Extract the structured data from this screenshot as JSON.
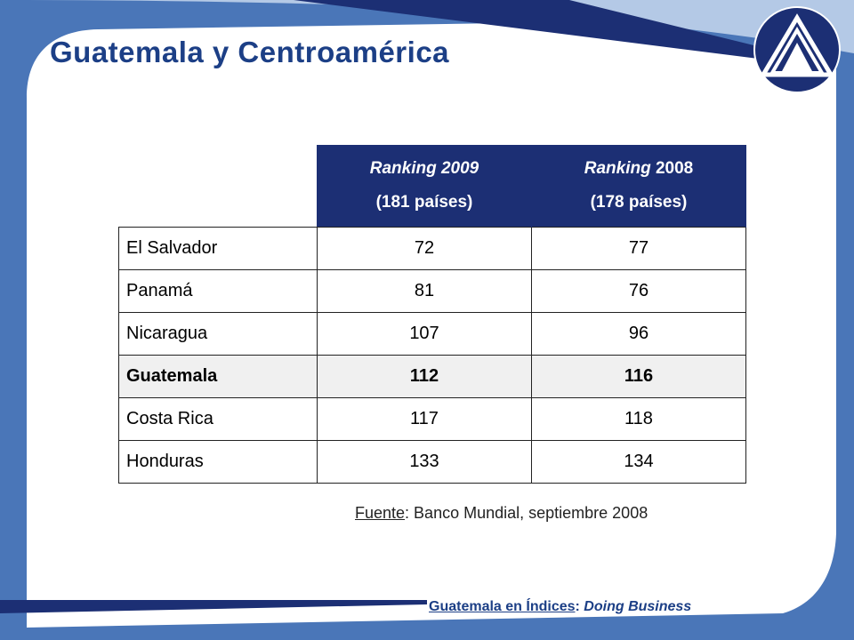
{
  "slide": {
    "title": "Guatemala y Centroamérica"
  },
  "table": {
    "headers": [
      {
        "line1_italic": "Ranking 2009",
        "line1_rest": "",
        "line2": "(181 países)"
      },
      {
        "line1_italic": "Ranking",
        "line1_rest": " 2008",
        "line2": "(178 países)"
      }
    ],
    "rows": [
      {
        "country": "El Salvador",
        "r2009": "72",
        "r2008": "77"
      },
      {
        "country": "Panamá",
        "r2009": "81",
        "r2008": "76"
      },
      {
        "country": "Nicaragua",
        "r2009": "107",
        "r2008": "96"
      },
      {
        "country": "Guatemala",
        "r2009": "112",
        "r2008": "116"
      },
      {
        "country": "Costa Rica",
        "r2009": "117",
        "r2008": "118"
      },
      {
        "country": "Honduras",
        "r2009": "133",
        "r2008": "134"
      }
    ]
  },
  "source": {
    "label": "Fuente",
    "text": ": Banco Mundial, septiembre 2008"
  },
  "footer": {
    "link": "Guatemala en Índices",
    "sep": ": ",
    "topic": "Doing Business"
  },
  "colors": {
    "brand_dark": "#1c2f74",
    "brand_mid": "#4a76b8",
    "brand_light": "#b4c9e6",
    "highlight_row": "#f0f0f0"
  },
  "icons": {
    "logo": "circle-triangle-logo-icon"
  }
}
